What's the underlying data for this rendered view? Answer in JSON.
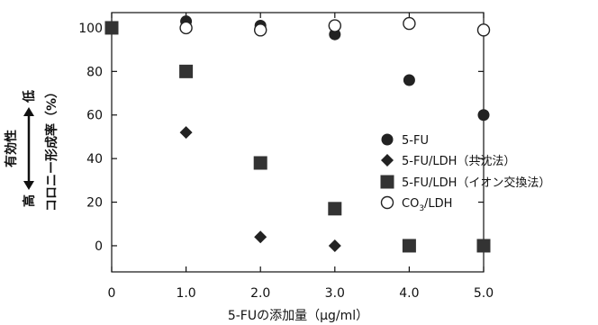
{
  "chart_data": {
    "type": "scatter",
    "xlabel": "5-FUの添加量（μg/ml）",
    "ylabel": "コロニー形成率（%）",
    "efficacy_label": "有効性",
    "efficacy_high": "高",
    "efficacy_low": "低",
    "xlim": [
      0,
      5
    ],
    "ylim": [
      -12,
      107
    ],
    "xticks": [
      0,
      1,
      2,
      3,
      4,
      5
    ],
    "xtick_labels": [
      "0",
      "1.0",
      "2.0",
      "3.0",
      "4.0",
      "5.0"
    ],
    "yticks": [
      0,
      20,
      40,
      60,
      80,
      100
    ],
    "ytick_labels": [
      "0",
      "20",
      "40",
      "60",
      "80",
      "100"
    ],
    "grid": false,
    "legend_position": "right",
    "series": [
      {
        "name": "5-FU",
        "marker": "filled-circle",
        "color": "#222222",
        "points": [
          [
            0,
            100
          ],
          [
            1,
            103
          ],
          [
            2,
            101
          ],
          [
            3,
            97
          ],
          [
            4,
            76
          ],
          [
            5,
            60
          ]
        ]
      },
      {
        "name": "5-FU/LDH（共沈法）",
        "marker": "filled-diamond",
        "color": "#222222",
        "points": [
          [
            1,
            52
          ],
          [
            2,
            4
          ],
          [
            3,
            0
          ]
        ]
      },
      {
        "name": "5-FU/LDH（イオン交換法）",
        "marker": "filled-square",
        "color": "#333333",
        "points": [
          [
            0,
            100
          ],
          [
            1,
            80
          ],
          [
            2,
            38
          ],
          [
            3,
            17
          ],
          [
            4,
            0
          ],
          [
            5,
            0
          ]
        ]
      },
      {
        "name": "CO3/LDH",
        "name_display": {
          "pre": "CO",
          "sub": "3",
          "post": "/LDH"
        },
        "marker": "open-circle",
        "color": "#222222",
        "points": [
          [
            1,
            100
          ],
          [
            2,
            99
          ],
          [
            3,
            101
          ],
          [
            4,
            102
          ],
          [
            5,
            99
          ]
        ]
      }
    ]
  }
}
